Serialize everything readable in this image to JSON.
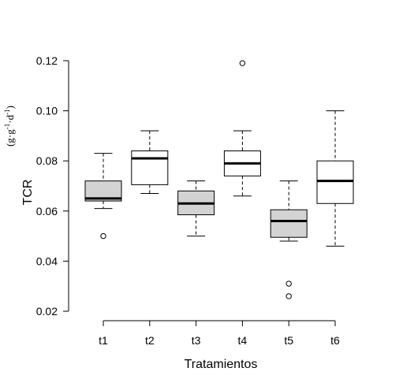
{
  "chart_data": {
    "type": "boxplot",
    "xlabel": "Tratamientos",
    "ylabel": "TCR",
    "ylabel_unit_parts": [
      "(g·g",
      "-1",
      "·d",
      "-1",
      ")"
    ],
    "ylim": [
      0.02,
      0.12
    ],
    "yticks": [
      "0.02",
      "0.04",
      "0.06",
      "0.08",
      "0.10",
      "0.12"
    ],
    "grid": false,
    "categories": [
      "t1",
      "t2",
      "t3",
      "t4",
      "t5",
      "t6"
    ],
    "boxes": [
      {
        "name": "t1",
        "whisker_low": 0.061,
        "q1": 0.064,
        "median": 0.065,
        "q3": 0.072,
        "whisker_high": 0.083,
        "outliers": [
          0.05
        ],
        "fill": "#d3d3d3"
      },
      {
        "name": "t2",
        "whisker_low": 0.067,
        "q1": 0.0705,
        "median": 0.081,
        "q3": 0.084,
        "whisker_high": 0.092,
        "outliers": [],
        "fill": "#ffffff"
      },
      {
        "name": "t3",
        "whisker_low": 0.05,
        "q1": 0.0585,
        "median": 0.063,
        "q3": 0.068,
        "whisker_high": 0.072,
        "outliers": [],
        "fill": "#d3d3d3"
      },
      {
        "name": "t4",
        "whisker_low": 0.066,
        "q1": 0.074,
        "median": 0.079,
        "q3": 0.084,
        "whisker_high": 0.092,
        "outliers": [
          0.119
        ],
        "fill": "#ffffff"
      },
      {
        "name": "t5",
        "whisker_low": 0.048,
        "q1": 0.0495,
        "median": 0.056,
        "q3": 0.0605,
        "whisker_high": 0.072,
        "outliers": [
          0.031,
          0.026
        ],
        "fill": "#d3d3d3"
      },
      {
        "name": "t6",
        "whisker_low": 0.046,
        "q1": 0.063,
        "median": 0.072,
        "q3": 0.08,
        "whisker_high": 0.1,
        "outliers": [],
        "fill": "#ffffff"
      }
    ]
  },
  "colors": {
    "stroke": "#000000",
    "box_gray": "#d3d3d3",
    "box_white": "#ffffff",
    "background": "#ffffff"
  }
}
